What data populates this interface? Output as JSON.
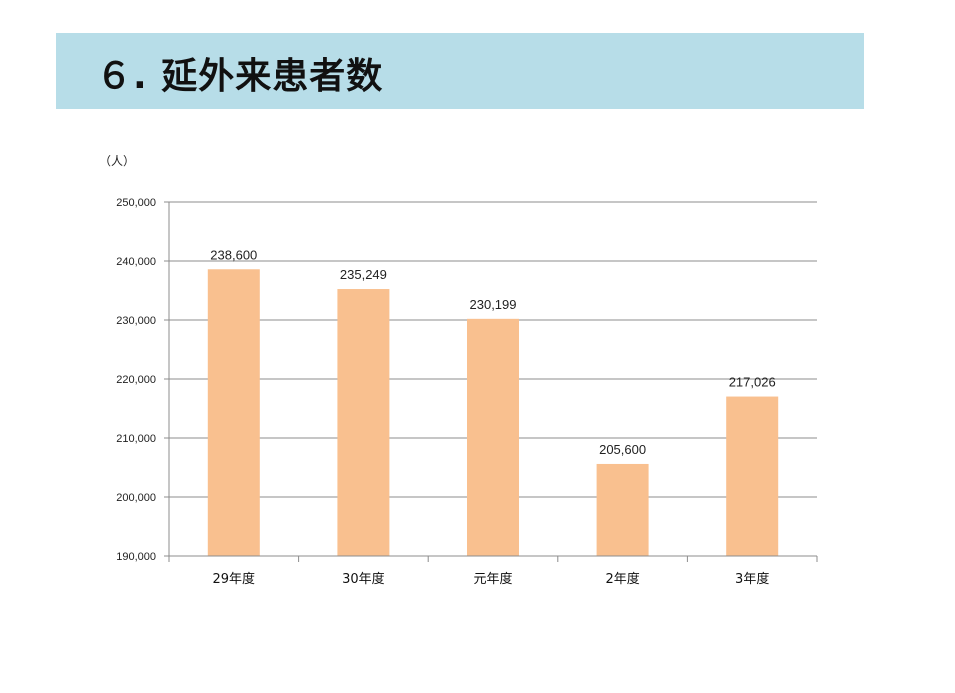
{
  "header": {
    "title": "６. 延外来患者数"
  },
  "chart_data": {
    "type": "bar",
    "unit_label": "（人）",
    "categories": [
      "29年度",
      "30年度",
      "元年度",
      "2年度",
      "3年度"
    ],
    "values": [
      238600,
      235249,
      230199,
      205600,
      217026
    ],
    "value_labels": [
      "238,600",
      "235,249",
      "230,199",
      "205,600",
      "217,026"
    ],
    "ylim": [
      190000,
      250000
    ],
    "y_ticks": [
      190000,
      200000,
      210000,
      220000,
      230000,
      240000,
      250000
    ],
    "y_tick_labels": [
      "190,000",
      "200,000",
      "210,000",
      "220,000",
      "230,000",
      "240,000",
      "250,000"
    ],
    "grid": true,
    "legend": "none",
    "bar_color": "#f9c08f",
    "grid_color": "#8c8c8c"
  }
}
